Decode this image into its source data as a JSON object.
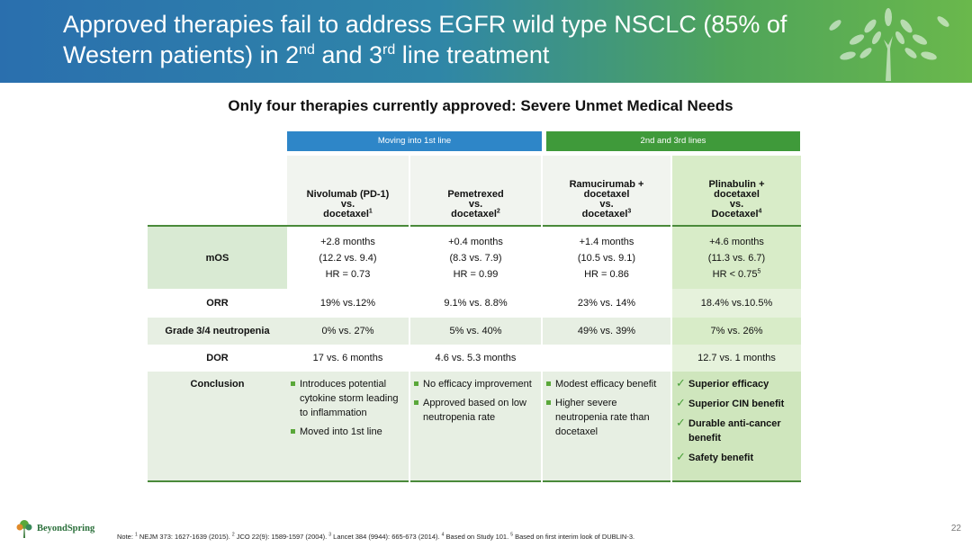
{
  "header": {
    "title_line1": "Approved therapies fail to address EGFR wild type NSCLC (85% of",
    "title_line2_a": "Western patients) in 2",
    "sup_nd": "nd",
    "title_line2_b": " and 3",
    "sup_rd": "rd",
    "title_line2_c": " line treatment"
  },
  "subtitle": "Only four therapies currently approved: Severe Unmet Medical Needs",
  "groups": {
    "first_line": "Moving into 1st line",
    "later_lines": "2nd and 3rd lines"
  },
  "columns": [
    {
      "l1": "Nivolumab (PD-1)",
      "l2": "vs.",
      "l3": "docetaxel",
      "ref": "1"
    },
    {
      "l1": "Pemetrexed",
      "l2": "vs.",
      "l3": "docetaxel",
      "ref": "2"
    },
    {
      "l0": "Ramucirumab +",
      "l1": "docetaxel",
      "l2": "vs.",
      "l3": "docetaxel",
      "ref": "3"
    },
    {
      "l0": "Plinabulin +",
      "l1": "docetaxel",
      "l2": "vs.",
      "l3": "Docetaxel",
      "ref": "4"
    }
  ],
  "rows": {
    "mos": {
      "label": "mOS",
      "cells": [
        {
          "a": "+2.8 months",
          "b": "(12.2 vs. 9.4)",
          "c": "HR = 0.73"
        },
        {
          "a": "+0.4 months",
          "b": "(8.3 vs. 7.9)",
          "c": "HR = 0.99"
        },
        {
          "a": "+1.4 months",
          "b": "(10.5 vs. 9.1)",
          "c": "HR = 0.86"
        },
        {
          "a": "+4.6 months",
          "b": "(11.3 vs. 6.7)",
          "c": "HR < 0.75",
          "ref": "5"
        }
      ]
    },
    "orr": {
      "label": "ORR",
      "cells": [
        "19% vs.12%",
        "9.1% vs. 8.8%",
        "23% vs. 14%",
        "18.4% vs.10.5%"
      ]
    },
    "neutropenia": {
      "label": "Grade 3/4 neutropenia",
      "cells": [
        "0% vs. 27%",
        "5% vs. 40%",
        "49% vs. 39%",
        "7% vs. 26%"
      ]
    },
    "dor": {
      "label": "DOR",
      "cells": [
        "17 vs. 6 months",
        "4.6 vs. 5.3 months",
        "",
        "12.7 vs. 1 months"
      ]
    },
    "conclusion": {
      "label": "Conclusion",
      "col1": [
        "Introduces potential cytokine storm leading to inflammation",
        "Moved into 1st line"
      ],
      "col2": [
        "No efficacy improvement",
        "Approved based on low neutropenia rate"
      ],
      "col3": [
        "Modest efficacy benefit",
        "Higher severe neutropenia rate than docetaxel"
      ],
      "col4": [
        "Superior efficacy",
        "Superior CIN benefit",
        "Durable anti-cancer benefit",
        "Safety benefit"
      ]
    }
  },
  "footer": {
    "logo_text": "BeyondSpring",
    "note_prefix": "Note: ",
    "n1": "1",
    "t1": " NEJM 373: 1627-1639 (2015).  ",
    "n2": "2",
    "t2": " JCO 22(9): 1589-1597 (2004).  ",
    "n3": "3",
    "t3": " Lancet 384 (9944): 665-673 (2014).  ",
    "n4": "4",
    "t4": " Based on Study 101.  ",
    "n5": "5",
    "t5": " Based on first interim look of DUBLIN-3.",
    "page_number": "22"
  },
  "colors": {
    "blue": "#2e86c8",
    "green": "#3f9a3a",
    "accent_light_green": "#d8ecc8"
  }
}
